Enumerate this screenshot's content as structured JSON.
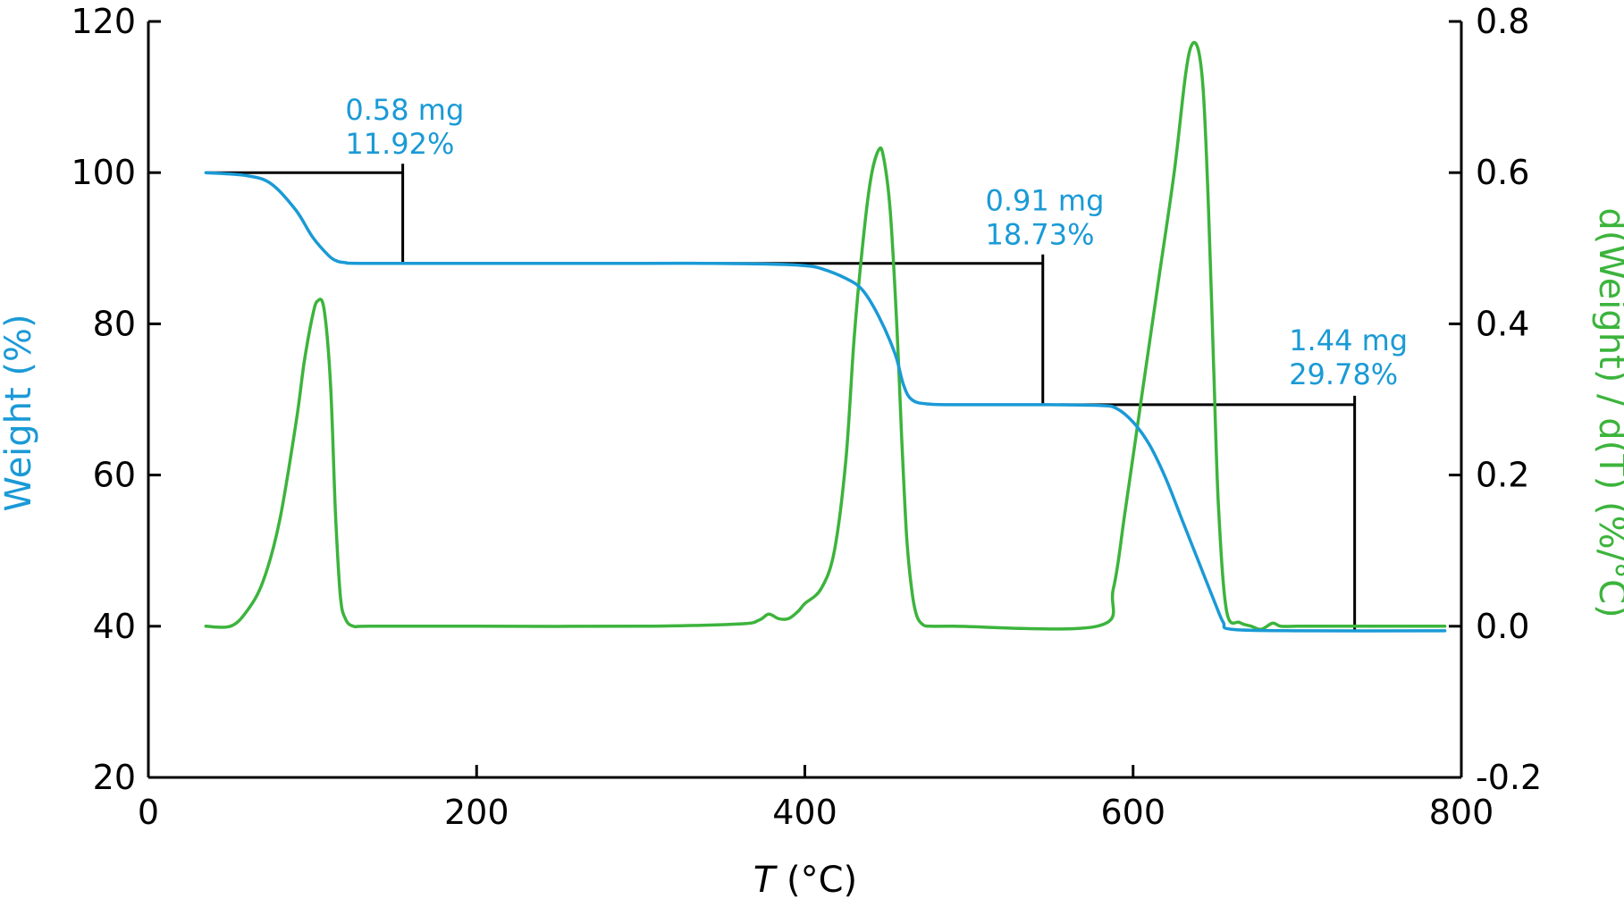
{
  "chart_data": {
    "type": "line",
    "xlabel_italic": "T",
    "xlabel_rest": " (°C)",
    "ylabel_left": "Weight (%)",
    "ylabel_right": "d(Weight) / d(T) (%/°C)",
    "xlim": [
      0,
      800
    ],
    "ylim_left": [
      20,
      120
    ],
    "ylim_right": [
      -0.2,
      0.8
    ],
    "x_ticks": [
      0,
      200,
      400,
      600,
      800
    ],
    "x_tick_labels": [
      "0",
      "200",
      "400",
      "600",
      "800"
    ],
    "y_left_ticks": [
      20,
      40,
      60,
      80,
      100,
      120
    ],
    "y_left_tick_labels": [
      "20",
      "40",
      "60",
      "80",
      "100",
      "120"
    ],
    "y_right_ticks": [
      -0.2,
      0.0,
      0.2,
      0.4,
      0.6,
      0.8
    ],
    "y_right_tick_labels": [
      "-0.2",
      "0.0",
      "0.2",
      "0.4",
      "0.6",
      "0.8"
    ],
    "grid": false,
    "colors": {
      "weight": "#1a9ad6",
      "derivative": "#3cb43c",
      "axes": "#000000"
    },
    "series": [
      {
        "axis": "left",
        "x": [
          35,
          60,
          75,
          90,
          100,
          110,
          115,
          120,
          130,
          200,
          300,
          340,
          380,
          400,
          410,
          425,
          435,
          445,
          455,
          460,
          465,
          475,
          500,
          550,
          580,
          590,
          600,
          610,
          620,
          630,
          640,
          650,
          655,
          660,
          700,
          790
        ],
        "y": [
          100,
          99.6,
          98.5,
          95,
          91.5,
          89,
          88.3,
          88.1,
          88,
          88,
          88,
          88,
          87.9,
          87.7,
          87.3,
          86,
          84.5,
          81,
          76,
          72,
          70,
          69.4,
          69.3,
          69.3,
          69.2,
          68.8,
          67,
          64,
          59.5,
          54,
          48.5,
          43,
          40.5,
          39.6,
          39.4,
          39.4
        ]
      },
      {
        "axis": "right",
        "x": [
          35,
          50,
          60,
          70,
          80,
          90,
          95,
          100,
          103,
          107,
          111,
          114,
          117,
          120,
          125,
          135,
          200,
          300,
          360,
          372,
          378,
          384,
          390,
          396,
          400,
          410,
          418,
          425,
          430,
          435,
          440,
          445,
          448,
          452,
          456,
          459,
          462,
          465,
          468,
          472,
          477,
          490,
          578,
          588,
          595,
          605,
          615,
          625,
          632,
          636,
          640,
          643,
          646,
          649,
          652,
          657,
          665,
          672,
          678,
          685,
          690,
          700,
          720,
          790
        ],
        "y": [
          0.0,
          0.0,
          0.02,
          0.06,
          0.14,
          0.27,
          0.35,
          0.41,
          0.43,
          0.42,
          0.32,
          0.15,
          0.04,
          0.01,
          0.0,
          0.0,
          0.0,
          0.0,
          0.003,
          0.008,
          0.016,
          0.01,
          0.01,
          0.02,
          0.03,
          0.05,
          0.1,
          0.22,
          0.38,
          0.5,
          0.59,
          0.63,
          0.62,
          0.55,
          0.4,
          0.25,
          0.12,
          0.05,
          0.015,
          0.002,
          0.0,
          0.0,
          0.0,
          0.05,
          0.15,
          0.3,
          0.45,
          0.6,
          0.73,
          0.77,
          0.76,
          0.7,
          0.55,
          0.35,
          0.16,
          0.02,
          0.005,
          0.0,
          -0.004,
          0.004,
          0.0,
          0.0,
          0.0,
          0.0
        ]
      }
    ],
    "step_markers": [
      {
        "x_start": 35,
        "x_end": 155,
        "y_top": 100,
        "y_bottom": 88,
        "mass": "0.58 mg",
        "percent": "11.92%",
        "label_x": 120,
        "label_y": 107
      },
      {
        "x_start": 340,
        "x_end": 545,
        "y_top": 88,
        "y_bottom": 69.3,
        "mass": "0.91 mg",
        "percent": "18.73%",
        "label_x": 510,
        "label_y": 95
      },
      {
        "x_start": 555,
        "x_end": 735,
        "y_top": 69.3,
        "y_bottom": 39.4,
        "mass": "1.44 mg",
        "percent": "29.78%",
        "label_x": 695,
        "label_y": 76.5
      }
    ]
  }
}
